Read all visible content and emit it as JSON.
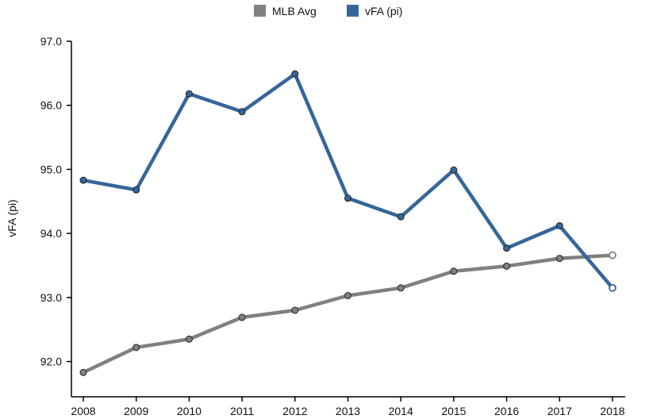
{
  "chart_data": {
    "type": "line",
    "title": "",
    "xlabel": "",
    "ylabel": "vFA (pi)",
    "x": [
      "2008",
      "2009",
      "2010",
      "2011",
      "2012",
      "2013",
      "2014",
      "2015",
      "2016",
      "2017",
      "2018"
    ],
    "ylim": [
      91.45,
      97.0
    ],
    "yticks": [
      "92.0",
      "93.0",
      "94.0",
      "95.0",
      "96.0",
      "97.0"
    ],
    "grid": false,
    "legend_position": "top-center",
    "series": [
      {
        "name": "MLB Avg",
        "color": "#808080",
        "values": [
          91.83,
          92.22,
          92.35,
          92.69,
          92.8,
          93.03,
          93.15,
          93.41,
          93.49,
          93.61,
          93.66
        ],
        "hollow_last_point": true
      },
      {
        "name": "vFA (pi)",
        "color": "#366699",
        "values": [
          94.83,
          94.68,
          96.18,
          95.9,
          96.49,
          94.55,
          94.26,
          94.99,
          93.77,
          94.12,
          93.15
        ],
        "hollow_last_point": true
      }
    ]
  }
}
